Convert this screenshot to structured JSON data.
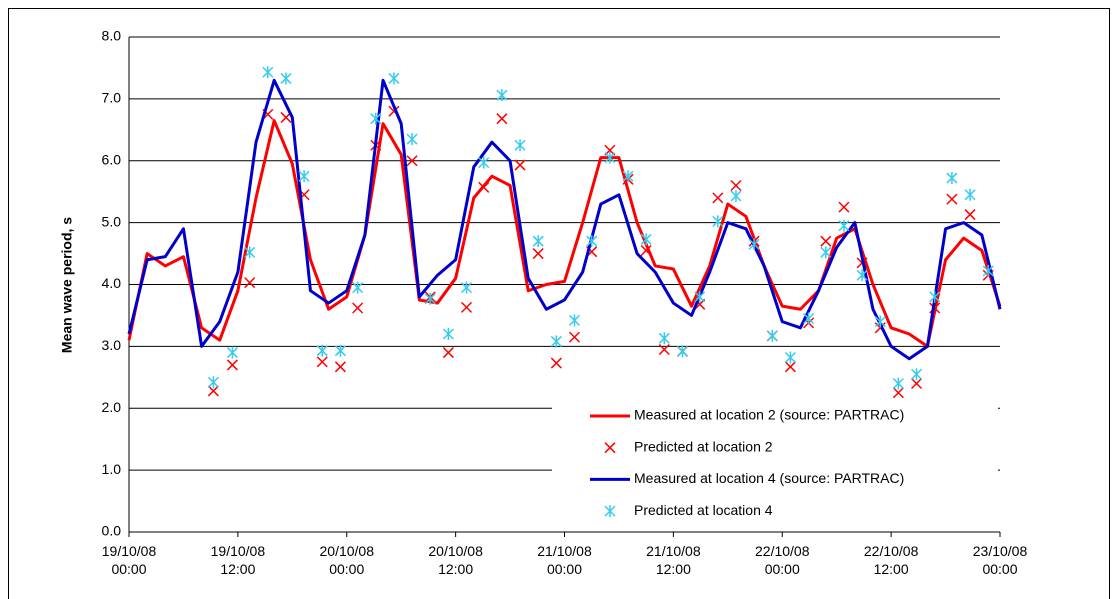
{
  "chart_data": {
    "type": "line",
    "y_label": "Mean wave period, s",
    "xlim": [
      0,
      96
    ],
    "ylim": [
      0,
      8
    ],
    "xticks": [
      {
        "value": 0,
        "label": "19/10/08\n00:00"
      },
      {
        "value": 12,
        "label": "19/10/08\n12:00"
      },
      {
        "value": 24,
        "label": "20/10/08\n00:00"
      },
      {
        "value": 36,
        "label": "20/10/08\n12:00"
      },
      {
        "value": 48,
        "label": "21/10/08\n00:00"
      },
      {
        "value": 60,
        "label": "21/10/08\n12:00"
      },
      {
        "value": 72,
        "label": "22/10/08\n00:00"
      },
      {
        "value": 84,
        "label": "22/10/08\n12:00"
      },
      {
        "value": 96,
        "label": "23/10/08\n00:00"
      }
    ],
    "yticks": [
      {
        "value": 0,
        "label": "0.0"
      },
      {
        "value": 1,
        "label": "1.0"
      },
      {
        "value": 2,
        "label": "2.0"
      },
      {
        "value": 3,
        "label": "3.0"
      },
      {
        "value": 4,
        "label": "4.0"
      },
      {
        "value": 5,
        "label": "5.0"
      },
      {
        "value": 6,
        "label": "6.0"
      },
      {
        "value": 7,
        "label": "7.0"
      },
      {
        "value": 8,
        "label": "8.0"
      }
    ],
    "grid": true,
    "legend": "lower right",
    "series": [
      {
        "name": "Measured at location 2 (source: PARTRAC)",
        "color": "#ff0000",
        "style": "line",
        "x": [
          0,
          2,
          4,
          6,
          8,
          10,
          12,
          14,
          16,
          18,
          20,
          22,
          24,
          26,
          28,
          30,
          32,
          34,
          36,
          38,
          40,
          42,
          44,
          46,
          48,
          50,
          52,
          54,
          56,
          58,
          60,
          62,
          64,
          66,
          68,
          70,
          72,
          74,
          76,
          78,
          80,
          82,
          84,
          86,
          88,
          90,
          92,
          94,
          96
        ],
        "values": [
          3.1,
          4.5,
          4.3,
          4.45,
          3.3,
          3.1,
          3.9,
          5.4,
          6.65,
          5.95,
          4.4,
          3.6,
          3.8,
          4.8,
          6.6,
          6.1,
          3.75,
          3.7,
          4.1,
          5.4,
          5.75,
          5.6,
          3.9,
          4.0,
          4.05,
          5.0,
          6.05,
          6.05,
          5.0,
          4.3,
          4.25,
          3.65,
          4.3,
          5.3,
          5.1,
          4.3,
          3.65,
          3.6,
          3.9,
          4.75,
          4.9,
          4.0,
          3.3,
          3.2,
          3.0,
          4.4,
          4.75,
          4.55,
          3.65
        ]
      },
      {
        "name": "Predicted at location 2",
        "color": "#ff0000",
        "style": "x",
        "x": [
          9.3,
          11.4,
          13.3,
          15.3,
          17.3,
          19.3,
          21.3,
          23.3,
          25.2,
          27.2,
          29.2,
          31.2,
          33.2,
          35.2,
          37.2,
          39.1,
          41.1,
          43.1,
          45.1,
          47.1,
          49.1,
          51.0,
          53.0,
          55.0,
          57.0,
          59.0,
          61.0,
          62.9,
          64.9,
          66.9,
          68.9,
          70.9,
          72.9,
          74.9,
          76.8,
          78.8,
          80.8,
          82.8,
          84.8,
          86.8,
          88.8,
          90.7,
          92.7,
          94.7
        ],
        "values": [
          2.28,
          2.7,
          4.03,
          6.75,
          6.7,
          5.45,
          2.75,
          2.67,
          3.62,
          6.25,
          6.8,
          6.0,
          3.8,
          2.9,
          3.63,
          5.57,
          6.68,
          5.93,
          4.5,
          2.73,
          3.15,
          4.53,
          6.17,
          5.7,
          4.55,
          2.95,
          2.92,
          3.68,
          5.4,
          5.6,
          4.7,
          3.17,
          2.67,
          3.38,
          4.7,
          5.25,
          4.35,
          3.3,
          2.25,
          2.4,
          3.62,
          5.38,
          5.13,
          4.15
        ]
      },
      {
        "name": "Measured at location 4 (source: PARTRAC)",
        "color": "#0000cc",
        "style": "line",
        "x": [
          0,
          2,
          4,
          6,
          8,
          10,
          12,
          14,
          16,
          18,
          20,
          22,
          24,
          26,
          28,
          30,
          32,
          34,
          36,
          38,
          40,
          42,
          44,
          46,
          48,
          50,
          52,
          54,
          56,
          58,
          60,
          62,
          64,
          66,
          68,
          70,
          72,
          74,
          76,
          78,
          80,
          82,
          84,
          86,
          88,
          90,
          92,
          94,
          96
        ],
        "values": [
          3.2,
          4.4,
          4.45,
          4.9,
          3.0,
          3.4,
          4.2,
          6.3,
          7.3,
          6.7,
          3.9,
          3.7,
          3.9,
          4.8,
          7.3,
          6.6,
          3.8,
          4.15,
          4.4,
          5.9,
          6.3,
          6.0,
          4.1,
          3.6,
          3.75,
          4.2,
          5.3,
          5.45,
          4.5,
          4.2,
          3.7,
          3.5,
          4.2,
          5.0,
          4.9,
          4.3,
          3.4,
          3.3,
          3.9,
          4.6,
          5.0,
          3.6,
          3.0,
          2.8,
          3.0,
          4.9,
          5.0,
          4.8,
          3.6
        ]
      },
      {
        "name": "Predicted at location 4",
        "color": "#33ccee",
        "style": "asterisk",
        "x": [
          9.3,
          11.4,
          13.3,
          15.3,
          17.3,
          19.3,
          21.3,
          23.3,
          25.2,
          27.2,
          29.2,
          31.2,
          33.2,
          35.2,
          37.2,
          39.1,
          41.1,
          43.1,
          45.1,
          47.1,
          49.1,
          51.0,
          53.0,
          55.0,
          57.0,
          59.0,
          61.0,
          62.9,
          64.9,
          66.9,
          68.9,
          70.9,
          72.9,
          74.9,
          76.8,
          78.8,
          80.8,
          82.8,
          84.8,
          86.8,
          88.8,
          90.7,
          92.7,
          94.7
        ],
        "values": [
          2.42,
          2.9,
          4.52,
          7.43,
          7.33,
          5.75,
          2.93,
          2.93,
          3.95,
          6.68,
          7.33,
          6.35,
          3.77,
          3.2,
          3.95,
          5.97,
          7.06,
          6.25,
          4.7,
          3.08,
          3.42,
          4.7,
          6.05,
          5.75,
          4.73,
          3.13,
          2.92,
          3.8,
          5.02,
          5.43,
          4.65,
          3.17,
          2.82,
          3.45,
          4.52,
          4.95,
          4.15,
          3.4,
          2.4,
          2.55,
          3.8,
          5.72,
          5.45,
          4.22
        ]
      }
    ]
  }
}
